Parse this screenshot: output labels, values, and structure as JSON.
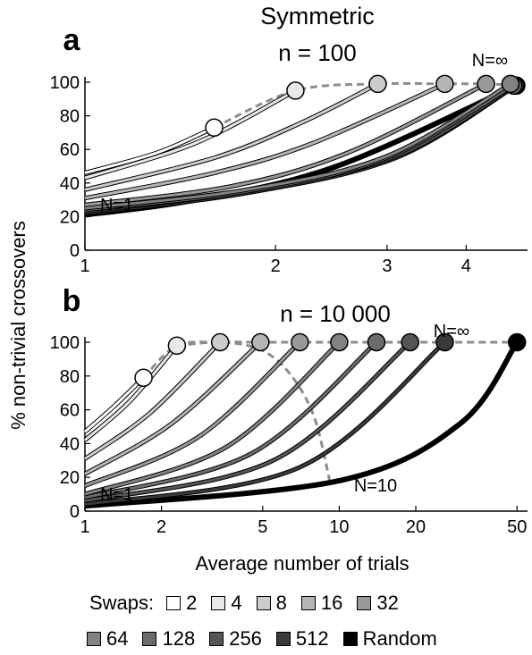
{
  "figure_title": "Symmetric",
  "y_axis_label": "% non-trivial crossovers",
  "x_axis_label": "Average number of trials",
  "chart_data": [
    {
      "type": "line",
      "panel_label": "a",
      "subtitle": "n = 100",
      "x_scale": "log",
      "xlim": [
        1,
        5
      ],
      "ylim": [
        0,
        100
      ],
      "x_ticks": [
        1,
        2,
        3,
        4
      ],
      "y_ticks": [
        0,
        20,
        40,
        60,
        80,
        100
      ],
      "annotations": [
        "N=1",
        "N=∞"
      ],
      "series": [
        {
          "swaps": "2",
          "color": "#ffffff",
          "x": [
            1,
            1.3,
            1.6
          ],
          "y": [
            46,
            58,
            73
          ]
        },
        {
          "swaps": "4",
          "color": "#e8e8e8",
          "x": [
            1,
            1.5,
            2.15
          ],
          "y": [
            43,
            64,
            95
          ]
        },
        {
          "swaps": "8",
          "color": "#cccccc",
          "x": [
            1,
            1.6,
            2.2,
            2.9
          ],
          "y": [
            36,
            55,
            76,
            99
          ]
        },
        {
          "swaps": "16",
          "color": "#b5b5b5",
          "x": [
            1,
            1.6,
            2.3,
            3.7
          ],
          "y": [
            31,
            46,
            64,
            99
          ]
        },
        {
          "swaps": "32",
          "color": "#999999",
          "x": [
            1,
            1.7,
            2.6,
            4.3
          ],
          "y": [
            27,
            38,
            58,
            99
          ]
        },
        {
          "swaps": "64",
          "color": "#828282",
          "x": [
            1,
            1.8,
            3,
            4.7
          ],
          "y": [
            25,
            36,
            56,
            99
          ]
        },
        {
          "swaps": "128",
          "color": "#6b6b6b",
          "x": [
            1,
            1.8,
            3,
            4.75
          ],
          "y": [
            24,
            35,
            55,
            98
          ]
        },
        {
          "swaps": "256",
          "color": "#555555",
          "x": [
            1,
            1.8,
            3.1,
            4.78
          ],
          "y": [
            23,
            35,
            56,
            98
          ]
        },
        {
          "swaps": "512",
          "color": "#3a3a3a",
          "x": [
            1,
            1.8,
            3.1,
            4.8
          ],
          "y": [
            22,
            34,
            55,
            98
          ]
        },
        {
          "swaps": "Random",
          "color": "#000000",
          "x": [
            1,
            1.5,
            2.5,
            4.8
          ],
          "y": [
            21,
            30,
            50,
            98
          ]
        }
      ],
      "frontier": {
        "x": [
          1.6,
          2.15,
          2.9,
          3.7,
          4.3,
          4.8
        ],
        "y": [
          73,
          95,
          99,
          99,
          99,
          98
        ]
      }
    },
    {
      "type": "line",
      "panel_label": "b",
      "subtitle": "n = 10 000",
      "x_scale": "log",
      "xlim": [
        1,
        55
      ],
      "ylim": [
        0,
        100
      ],
      "x_ticks": [
        1,
        2,
        5,
        10,
        20,
        50
      ],
      "y_ticks": [
        0,
        20,
        40,
        60,
        80,
        100
      ],
      "annotations": [
        "N=1",
        "N=10",
        "N=∞"
      ],
      "series": [
        {
          "swaps": "2",
          "color": "#ffffff",
          "x": [
            1,
            1.3,
            1.7
          ],
          "y": [
            47,
            62,
            79
          ]
        },
        {
          "swaps": "4",
          "color": "#e8e8e8",
          "x": [
            1,
            1.5,
            2.3
          ],
          "y": [
            42,
            65,
            98
          ]
        },
        {
          "swaps": "8",
          "color": "#cccccc",
          "x": [
            1,
            1.8,
            3.4
          ],
          "y": [
            31,
            58,
            100
          ]
        },
        {
          "swaps": "16",
          "color": "#b5b5b5",
          "x": [
            1,
            2.2,
            4.9
          ],
          "y": [
            22,
            52,
            100
          ]
        },
        {
          "swaps": "32",
          "color": "#999999",
          "x": [
            1,
            2.8,
            7
          ],
          "y": [
            15,
            44,
            100
          ]
        },
        {
          "swaps": "64",
          "color": "#828282",
          "x": [
            1,
            3.6,
            10
          ],
          "y": [
            10,
            38,
            100
          ]
        },
        {
          "swaps": "128",
          "color": "#6b6b6b",
          "x": [
            1,
            4.5,
            14
          ],
          "y": [
            8,
            34,
            100
          ]
        },
        {
          "swaps": "256",
          "color": "#555555",
          "x": [
            1,
            5.5,
            19
          ],
          "y": [
            6,
            30,
            100
          ]
        },
        {
          "swaps": "512",
          "color": "#3a3a3a",
          "x": [
            1,
            7,
            26
          ],
          "y": [
            4,
            26,
            100
          ]
        },
        {
          "swaps": "Random",
          "color": "#000000",
          "x": [
            1,
            10,
            30,
            50
          ],
          "y": [
            3,
            18,
            52,
            100
          ]
        }
      ],
      "frontier": {
        "x": [
          1.7,
          2.3,
          3.4,
          4.9,
          7,
          10,
          14,
          19,
          26,
          50
        ],
        "y": [
          79,
          98,
          100,
          100,
          100,
          100,
          100,
          100,
          100,
          100
        ]
      },
      "n10_curve": {
        "x": [
          2.3,
          3.5,
          5,
          6.5,
          8,
          9.2
        ],
        "y": [
          98,
          100,
          95,
          80,
          55,
          17
        ]
      }
    }
  ],
  "legend": {
    "title": "Swaps:",
    "items": [
      {
        "label": "2",
        "color": "#ffffff"
      },
      {
        "label": "4",
        "color": "#e8e8e8"
      },
      {
        "label": "8",
        "color": "#cccccc"
      },
      {
        "label": "16",
        "color": "#b5b5b5"
      },
      {
        "label": "32",
        "color": "#999999"
      },
      {
        "label": "64",
        "color": "#828282"
      },
      {
        "label": "128",
        "color": "#6b6b6b"
      },
      {
        "label": "256",
        "color": "#555555"
      },
      {
        "label": "512",
        "color": "#3a3a3a"
      },
      {
        "label": "Random",
        "color": "#000000"
      }
    ]
  }
}
